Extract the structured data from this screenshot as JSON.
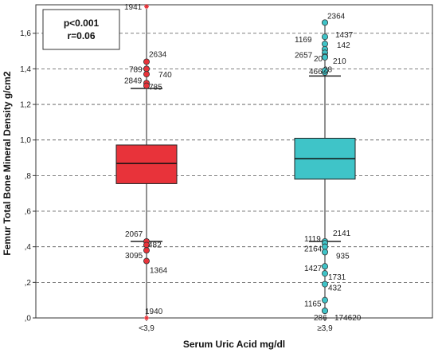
{
  "chart_data": {
    "type": "box",
    "xlabel": "Serum Uric Acid mg/dl",
    "ylabel": "Femur Total Bone Mineral Density g/cm2",
    "ylim": [
      0,
      1.76
    ],
    "y_ticks": [
      0,
      0.2,
      0.4,
      0.6,
      0.8,
      1.0,
      1.2,
      1.4,
      1.6
    ],
    "y_tick_labels": [
      ",0",
      ",2",
      ",4",
      ",6",
      ",8",
      "1,0",
      "1,2",
      "1,4",
      "1,6"
    ],
    "grid": "dashed horizontal lines",
    "annotation": {
      "line1": "p<0.001",
      "line2": "r=0.06"
    },
    "groups": [
      {
        "category": "<3,9",
        "color": "#e8333a",
        "q1": 0.755,
        "median": 0.868,
        "q3": 0.972,
        "whisker_low": 0.43,
        "whisker_high": 1.29,
        "outliers": [
          {
            "label": "1941",
            "value": 1.75,
            "marker": "star"
          },
          {
            "label": "2634",
            "value": 1.44,
            "marker": "circle"
          },
          {
            "label": "789",
            "value": 1.4,
            "marker": "circle"
          },
          {
            "label": "740",
            "value": 1.37,
            "marker": "circle"
          },
          {
            "label": "2849",
            "value": 1.32,
            "marker": "circle"
          },
          {
            "label": "785",
            "value": 1.305,
            "marker": "circle"
          },
          {
            "label": "2067",
            "value": 0.43,
            "marker": "circle"
          },
          {
            "label": "482",
            "value": 0.41,
            "marker": "circle"
          },
          {
            "label": "3095",
            "value": 0.38,
            "marker": "circle"
          },
          {
            "label": "1364",
            "value": 0.32,
            "marker": "circle"
          },
          {
            "label": "1940",
            "value": 0.0,
            "marker": "star"
          }
        ]
      },
      {
        "category": "≥3,9",
        "color": "#3fc4c8",
        "q1": 0.78,
        "median": 0.895,
        "q3": 1.01,
        "whisker_low": 0.43,
        "whisker_high": 1.36,
        "outliers": [
          {
            "label": "2364",
            "value": 1.66,
            "marker": "circle"
          },
          {
            "label": "1437",
            "value": 1.58,
            "marker": "circle"
          },
          {
            "label": "1169",
            "value": 1.54,
            "marker": "circle"
          },
          {
            "label": "142",
            "value": 1.51,
            "marker": "circle"
          },
          {
            "label": "2657",
            "value": 1.49,
            "marker": "circle"
          },
          {
            "label": "20",
            "value": 1.47,
            "marker": "circle"
          },
          {
            "label": "210",
            "value": 1.465,
            "marker": "circle"
          },
          {
            "label": "466",
            "value": 1.38,
            "marker": "circle"
          },
          {
            "label": "28",
            "value": 1.39,
            "marker": "circle"
          },
          {
            "label": "2141",
            "value": 0.43,
            "marker": "circle"
          },
          {
            "label": "1119",
            "value": 0.42,
            "marker": "circle"
          },
          {
            "label": "2164",
            "value": 0.4,
            "marker": "circle"
          },
          {
            "label": "935",
            "value": 0.37,
            "marker": "circle"
          },
          {
            "label": "1427",
            "value": 0.29,
            "marker": "circle"
          },
          {
            "label": "1731",
            "value": 0.25,
            "marker": "circle"
          },
          {
            "label": "432",
            "value": 0.19,
            "marker": "circle"
          },
          {
            "label": "1165",
            "value": 0.1,
            "marker": "circle"
          },
          {
            "label": "286",
            "value": 0.04,
            "marker": "circle"
          },
          {
            "label": "174620",
            "value": 0.04,
            "marker": "circle"
          }
        ]
      }
    ]
  }
}
